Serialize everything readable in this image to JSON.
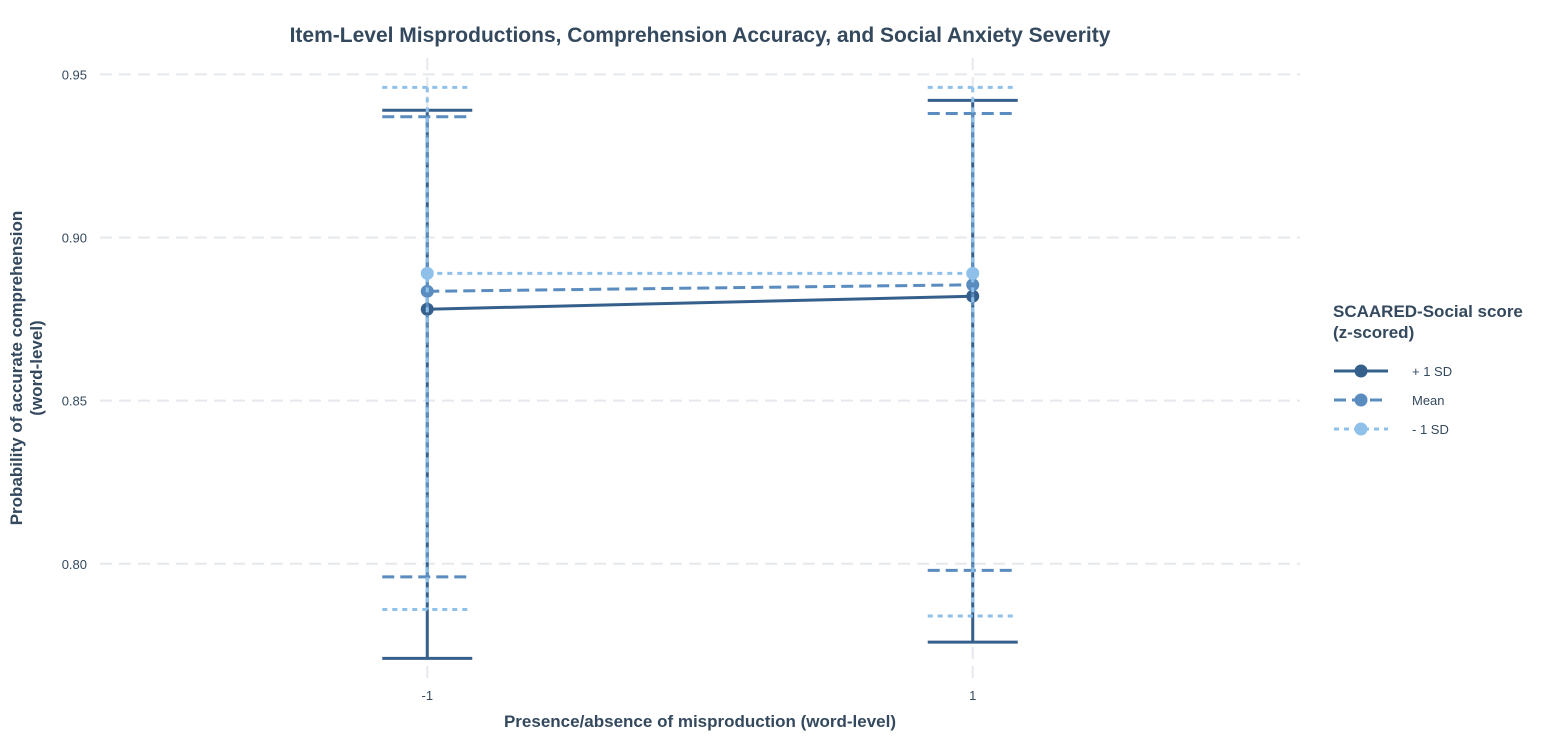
{
  "chart_data": {
    "type": "line",
    "title": "Item-Level Misproductions, Comprehension Accuracy, and Social Anxiety Severity",
    "xlabel": "Presence/absence of misproduction (word-level)",
    "ylabel_line1": "Probability of accurate comprehension",
    "ylabel_line2": "(word-level)",
    "x": [
      -1,
      1
    ],
    "x_ticks": [
      "-1",
      "1"
    ],
    "xlim": [
      -2.2,
      2.2
    ],
    "ylim": [
      0.765,
      0.955
    ],
    "y_ticks": [
      0.8,
      0.85,
      0.9,
      0.95
    ],
    "y_tick_labels": [
      "0.80",
      "0.85",
      "0.90",
      "0.95"
    ],
    "grid": true,
    "legend": {
      "position": "right",
      "title_line1": "SCAARED-Social score",
      "title_line2": "(z-scored)"
    },
    "series": [
      {
        "name": "+ 1 SD",
        "color": "#36608c",
        "dash": "solid",
        "values": [
          0.878,
          0.882
        ],
        "ci_low": [
          0.771,
          0.776
        ],
        "ci_high": [
          0.939,
          0.942
        ]
      },
      {
        "name": "Mean",
        "color": "#5b8cbf",
        "dash": "dashed",
        "values": [
          0.8835,
          0.8855
        ],
        "ci_low": [
          0.796,
          0.798
        ],
        "ci_high": [
          0.937,
          0.938
        ]
      },
      {
        "name": "- 1 SD",
        "color": "#8fc0ea",
        "dash": "dotted",
        "values": [
          0.889,
          0.889
        ],
        "ci_low": [
          0.786,
          0.784
        ],
        "ci_high": [
          0.946,
          0.946
        ]
      }
    ]
  }
}
